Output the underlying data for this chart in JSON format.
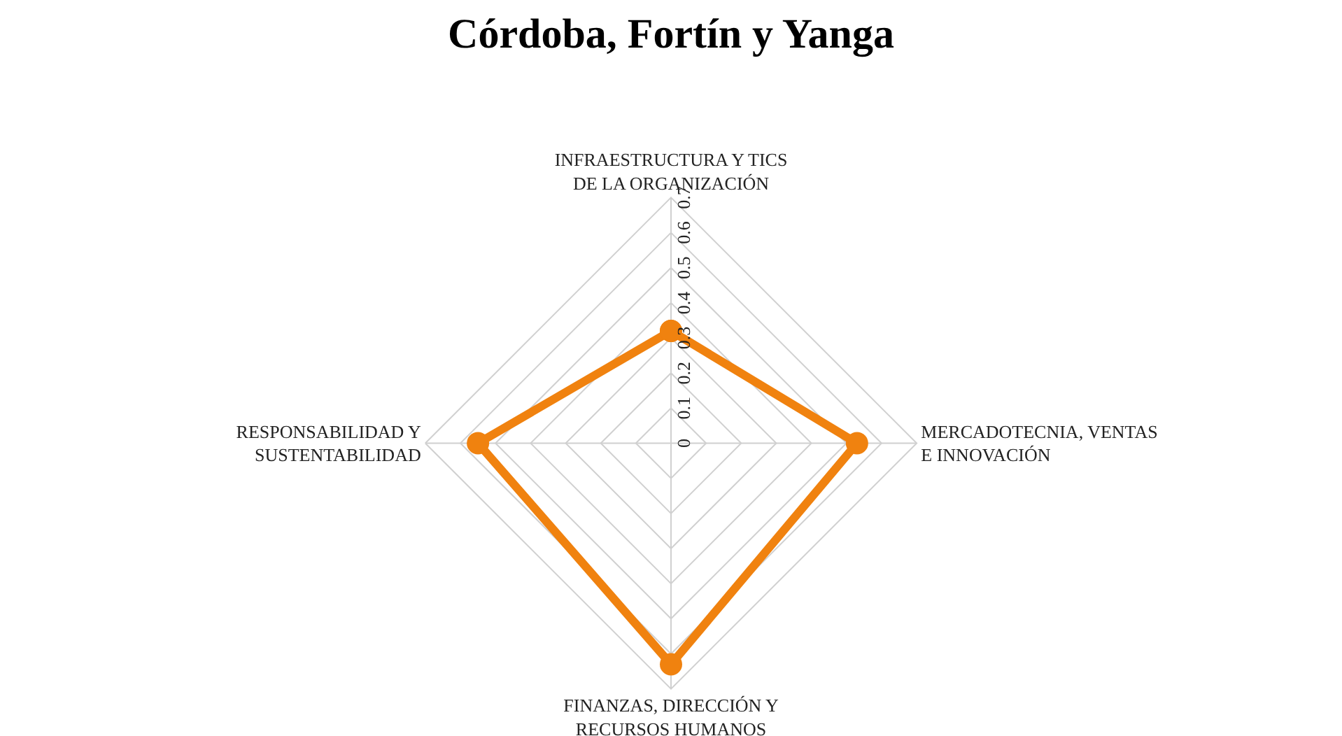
{
  "chart_data": {
    "type": "radar",
    "title": "Córdoba, Fortín y Yanga",
    "categories": [
      "INFRAESTRUCTURA Y TICS DE LA ORGANIZACIÓN",
      "MERCADOTECNIA, VENTAS E INNOVACIÓN",
      "FINANZAS, DIRECCIÓN Y RECURSOS HUMANOS",
      "RESPONSABILIDAD Y SUSTENTABILIDAD"
    ],
    "series": [
      {
        "color": "#f0820f",
        "values": [
          0.32,
          0.53,
          0.63,
          0.55
        ]
      }
    ],
    "ylim": [
      0,
      0.7
    ],
    "yticks": [
      0,
      0.1,
      0.2,
      0.3,
      0.4,
      0.5,
      0.6,
      0.7
    ],
    "grid": true,
    "marker": "circle",
    "legend": false
  }
}
